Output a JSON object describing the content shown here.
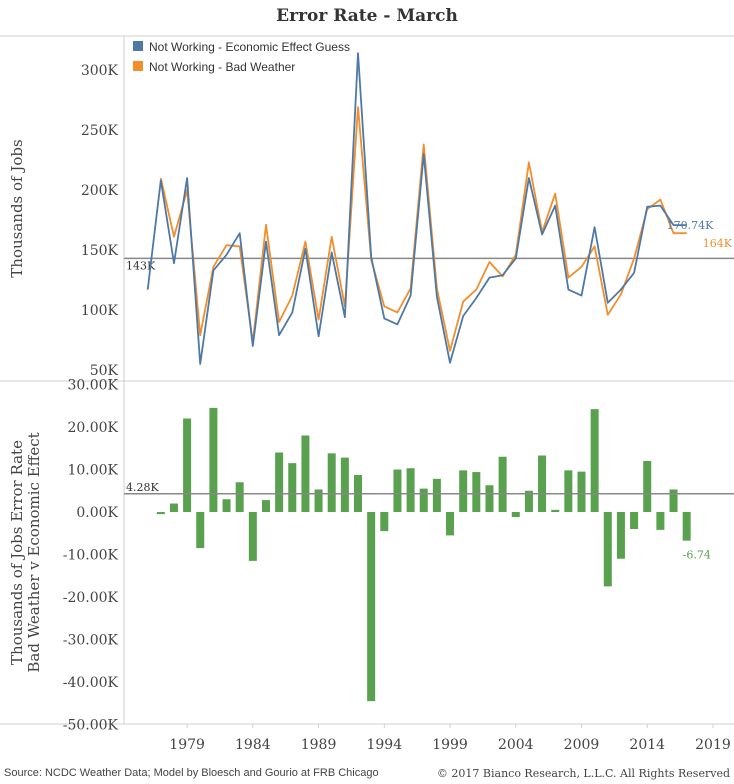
{
  "title": "Error Rate - March",
  "footer": {
    "source": "Source: NCDC Weather Data; Model by Bloesch and Gourio at FRB Chicago",
    "copyright": "© 2017 Bianco Research, L.L.C. All Rights Reserved"
  },
  "colors": {
    "economic": "#4e79a7",
    "weather": "#f28e2b",
    "diff": "#59a14f",
    "refline": "#888888"
  },
  "chart_data": [
    {
      "type": "line",
      "ylabel": "Thousands of Jobs",
      "ylim": [
        40000,
        320000
      ],
      "yticks": [
        50000,
        100000,
        150000,
        200000,
        250000,
        300000
      ],
      "ytick_labels": [
        "50K",
        "100K",
        "150K",
        "200K",
        "250K",
        "300K"
      ],
      "legend": "top-left",
      "reference_line": {
        "value": 143000,
        "label": "143K"
      },
      "x": [
        1976,
        1977,
        1978,
        1979,
        1980,
        1981,
        1982,
        1983,
        1984,
        1985,
        1986,
        1987,
        1988,
        1989,
        1990,
        1991,
        1992,
        1993,
        1994,
        1995,
        1996,
        1997,
        1998,
        1999,
        2000,
        2001,
        2002,
        2003,
        2004,
        2005,
        2006,
        2007,
        2008,
        2009,
        2010,
        2011,
        2012,
        2013,
        2014,
        2015,
        2016,
        2017
      ],
      "series": [
        {
          "name": "Not Working - Economic Effect Guess",
          "color": "#4e79a7",
          "values": [
            117000,
            208000,
            139000,
            210000,
            55000,
            133000,
            146000,
            164000,
            70000,
            157000,
            79000,
            98000,
            151000,
            78000,
            148000,
            94000,
            314000,
            144000,
            93000,
            88000,
            112000,
            230000,
            111000,
            56000,
            95000,
            110000,
            127000,
            129000,
            143000,
            210000,
            163000,
            187000,
            117000,
            112000,
            169000,
            106000,
            117000,
            131000,
            186000,
            187000,
            170740,
            170740
          ],
          "end_label": "170.74K"
        },
        {
          "name": "Not Working - Bad Weather",
          "color": "#f28e2b",
          "values": [
            null,
            210000,
            161000,
            200000,
            79000,
            136000,
            154000,
            153000,
            73000,
            171000,
            90000,
            112000,
            157000,
            92000,
            161000,
            103000,
            269000,
            142000,
            103000,
            98000,
            118000,
            238000,
            118000,
            66000,
            107000,
            117000,
            140000,
            128000,
            146000,
            223000,
            165000,
            197000,
            127000,
            136000,
            153000,
            96000,
            113000,
            143000,
            184000,
            192000,
            164000,
            164000
          ],
          "end_label": "164K"
        }
      ]
    },
    {
      "type": "bar",
      "ylabel": "Thousands of Jobs Error Rate\nBad Weather v Economic Effect",
      "ylim": [
        -50000,
        30000
      ],
      "yticks": [
        -50000,
        -40000,
        -30000,
        -20000,
        -10000,
        0,
        10000,
        20000,
        30000
      ],
      "ytick_labels": [
        "-50.00K",
        "-40.00K",
        "-30.00K",
        "-20.00K",
        "-10.00K",
        "0.00K",
        "10.00K",
        "20.00K",
        "30.00K"
      ],
      "reference_line": {
        "value": 4280,
        "label": "4.28K"
      },
      "x": [
        1977,
        1978,
        1979,
        1980,
        1981,
        1982,
        1983,
        1984,
        1985,
        1986,
        1987,
        1988,
        1989,
        1990,
        1991,
        1992,
        1993,
        1994,
        1995,
        1996,
        1997,
        1998,
        1999,
        2000,
        2001,
        2002,
        2003,
        2004,
        2005,
        2006,
        2007,
        2008,
        2009,
        2010,
        2011,
        2012,
        2013,
        2014,
        2015,
        2016,
        2017
      ],
      "values": [
        -500,
        2000,
        22000,
        -8500,
        24500,
        3000,
        7000,
        -11500,
        2800,
        14000,
        11500,
        18000,
        5300,
        13800,
        12800,
        8700,
        -44500,
        -4500,
        10000,
        10300,
        5500,
        7800,
        -5500,
        9800,
        9400,
        6300,
        13000,
        -1200,
        5000,
        13300,
        500,
        9800,
        9500,
        24200,
        -17500,
        -11000,
        -4000,
        12000,
        -4200,
        5300,
        -6740
      ],
      "end_label": "-6.74"
    }
  ],
  "xaxis": {
    "xlim": [
      1974.2,
      2020.6
    ],
    "ticks": [
      1979,
      1984,
      1989,
      1994,
      1999,
      2004,
      2009,
      2014,
      2019
    ],
    "tick_labels": [
      "1979",
      "1984",
      "1989",
      "1994",
      "1999",
      "2004",
      "2009",
      "2014",
      "2019"
    ]
  }
}
